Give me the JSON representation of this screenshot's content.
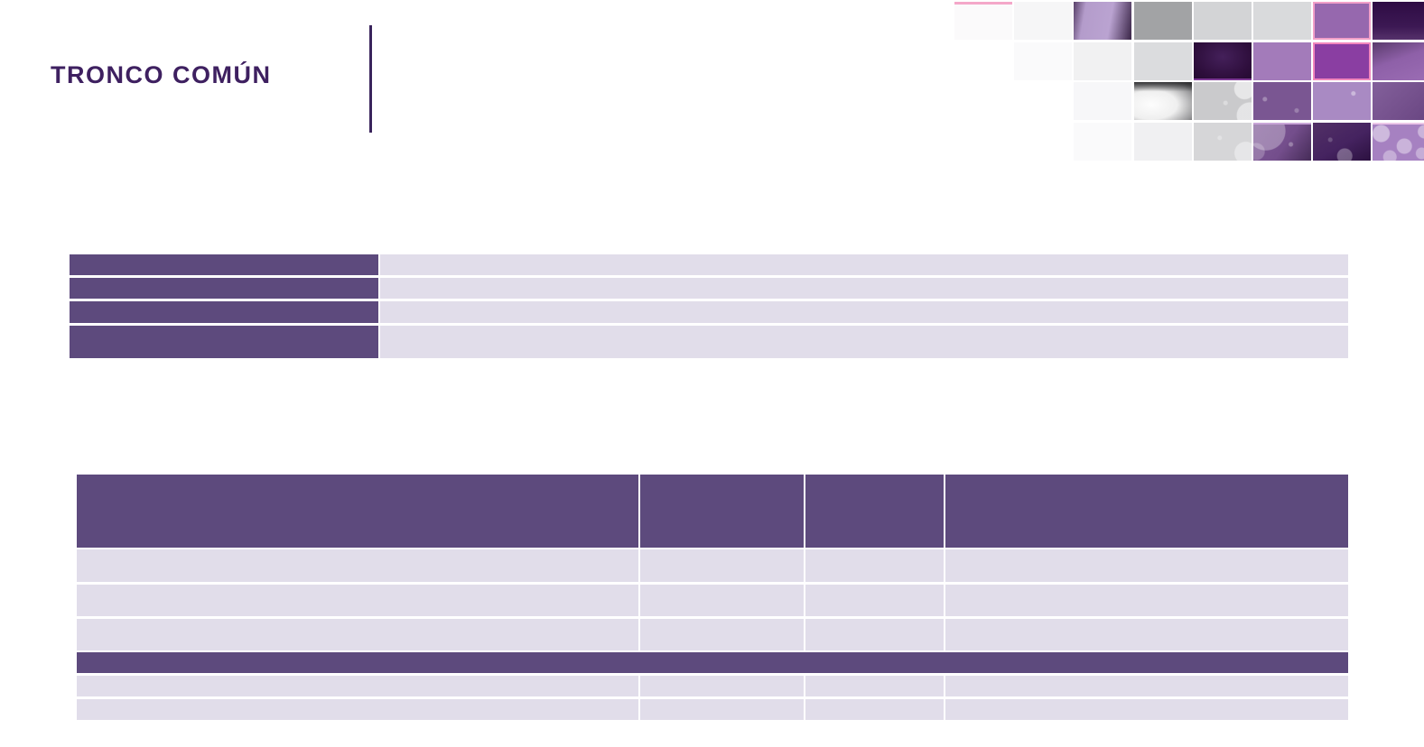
{
  "slide": {
    "title": "TRONCO COMÚN",
    "colors": {
      "background": "#FFFFFF",
      "title": "#3E2060",
      "divider": "#3A245C",
      "table_header": "#5D4A7D",
      "table_row": "#E1DDEA",
      "accent_pink": "#F2A0C8"
    }
  },
  "info_table": {
    "rows": [
      {
        "label": "",
        "value": ""
      },
      {
        "label": "",
        "value": ""
      },
      {
        "label": "",
        "value": ""
      },
      {
        "label": "",
        "value": ""
      }
    ]
  },
  "courses_table": {
    "header": [
      "",
      "",
      "",
      ""
    ],
    "body_rows": [
      [
        "",
        "",
        "",
        ""
      ],
      [
        "",
        "",
        "",
        ""
      ],
      [
        "",
        "",
        "",
        ""
      ]
    ],
    "section_row": "",
    "footer_rows": [
      [
        "",
        "",
        "",
        ""
      ],
      [
        "",
        "",
        "",
        ""
      ]
    ]
  },
  "mosaic": {
    "tiles": [
      {
        "r": 0,
        "c": 0,
        "bg": "#FBFAFB",
        "borderTop": "3px solid #F4A7C9"
      },
      {
        "r": 0,
        "c": 1,
        "bg": "#F6F6F7"
      },
      {
        "r": 0,
        "c": 2,
        "bg": "linear-gradient(100deg, #594169 0%, #B49CCB 20%, #BAA3D1 62%, #3A2547 100%)"
      },
      {
        "r": 0,
        "c": 3,
        "bg": "#A2A3A5"
      },
      {
        "r": 0,
        "c": 4,
        "bg": "#D3D4D6"
      },
      {
        "r": 0,
        "c": 5,
        "bg": "#D9DADC"
      },
      {
        "r": 0,
        "c": 6,
        "bg": "#9668AE",
        "border": "2px solid #F2A0C8"
      },
      {
        "r": 0,
        "c": 7,
        "bg": "linear-gradient(180deg, #2E0C44 0%, #3C1853 65%, #55316B 100%)"
      },
      {
        "r": 1,
        "c": 1,
        "bg": "#FAFAFB"
      },
      {
        "r": 1,
        "c": 2,
        "bg": "#F1F1F2"
      },
      {
        "r": 1,
        "c": 3,
        "bg": "#DBDCDE"
      },
      {
        "r": 1,
        "c": 4,
        "bg": "radial-gradient(ellipse at 50% 40%, #44205A 0%, #2E0E3C 70%, #250B31 100%)",
        "borderBottom": "2px solid #7C3894"
      },
      {
        "r": 1,
        "c": 5,
        "bg": "#A37BBA"
      },
      {
        "r": 1,
        "c": 6,
        "bg": "#8A3EA2",
        "border": "2px solid #F287BD"
      },
      {
        "r": 1,
        "c": 7,
        "bg": "linear-gradient(160deg, #5A3A6C 0%, #8E60A8 45%, #9B6DB4 100%)"
      },
      {
        "r": 2,
        "c": 2,
        "bg": "#F7F7F9"
      },
      {
        "r": 2,
        "c": 3,
        "bg": "linear-gradient(180deg, rgba(40,40,42,0.9) 0%, rgba(40,40,42,0) 25%), radial-gradient(ellipse at 30% 60%, #FDFDFD 0%, #EFEFEF 45%, #98989A 78%, #3E3E40 100%)"
      },
      {
        "r": 2,
        "c": 4,
        "bg": "radial-gradient(circle at 88% 18%, rgba(255,255,255,0.55) 0 11px, transparent 12px), radial-gradient(circle at 97% 88%, rgba(255,255,255,0.5) 0 14px, transparent 15px), radial-gradient(circle at 55% 55%, rgba(255,255,255,0.35) 0 2px, transparent 3px), #CACACC"
      },
      {
        "r": 2,
        "c": 5,
        "bg": "radial-gradient(circle at 20% 45%, rgba(255,255,255,0.3) 0 2px, transparent 3px), radial-gradient(circle at 75% 75%, rgba(255,255,255,0.25) 0 2px, transparent 3px), #7A5692"
      },
      {
        "r": 2,
        "c": 6,
        "bg": "radial-gradient(circle at 70% 30%, rgba(255,255,255,0.4) 0 2px, transparent 3px), #A98AC3"
      },
      {
        "r": 2,
        "c": 7,
        "bg": "linear-gradient(135deg, #83609B 0%, #74508C 60%, #684581 100%)"
      },
      {
        "r": 3,
        "c": 2,
        "bg": "#FAFAFB"
      },
      {
        "r": 3,
        "c": 3,
        "bg": "#F0F0F2"
      },
      {
        "r": 3,
        "c": 4,
        "bg": "radial-gradient(circle at 90% 80%, rgba(255,255,255,0.4) 0 12px, transparent 13px), radial-gradient(circle at 45% 40%, rgba(255,255,255,0.3) 0 2px, transparent 3px), #D6D6D8"
      },
      {
        "r": 3,
        "c": 5,
        "bg": "radial-gradient(circle at 22% 18%, rgba(255,255,255,0.3) 0 21px, transparent 22px), radial-gradient(circle at 5% 75%, rgba(255,255,255,0.22) 0 9px, transparent 10px), radial-gradient(circle at 65% 55%, rgba(255,255,255,0.3) 0 2px, transparent 3px), linear-gradient(125deg, #7E5896 0%, #744E8C 55%, #452B57 100%)",
        "borderTop": "2px solid #C9A6D8"
      },
      {
        "r": 3,
        "c": 6,
        "bg": "radial-gradient(circle at 55% 88%, rgba(255,255,255,0.3) 0 8px, transparent 9px), radial-gradient(circle at 30% 45%, rgba(255,255,255,0.2) 0 2px, transparent 3px), linear-gradient(150deg, #523066 0%, #452360 55%, #2C1140 100%)"
      },
      {
        "r": 3,
        "c": 7,
        "bg": "radial-gradient(circle at 15% 25%, rgba(255,255,255,0.45) 0 9px, transparent 10px), radial-gradient(circle at 55% 60%, rgba(255,255,255,0.4) 0 8px, transparent 9px), radial-gradient(circle at 90% 20%, rgba(255,255,255,0.4) 0 7px, transparent 8px), radial-gradient(circle at 85% 80%, rgba(255,255,255,0.35) 0 6px, transparent 7px), radial-gradient(circle at 30% 90%, rgba(255,255,255,0.35) 0 7px, transparent 8px), #A681C1",
        "borderTop": "2px solid #ECC7E8"
      }
    ]
  }
}
